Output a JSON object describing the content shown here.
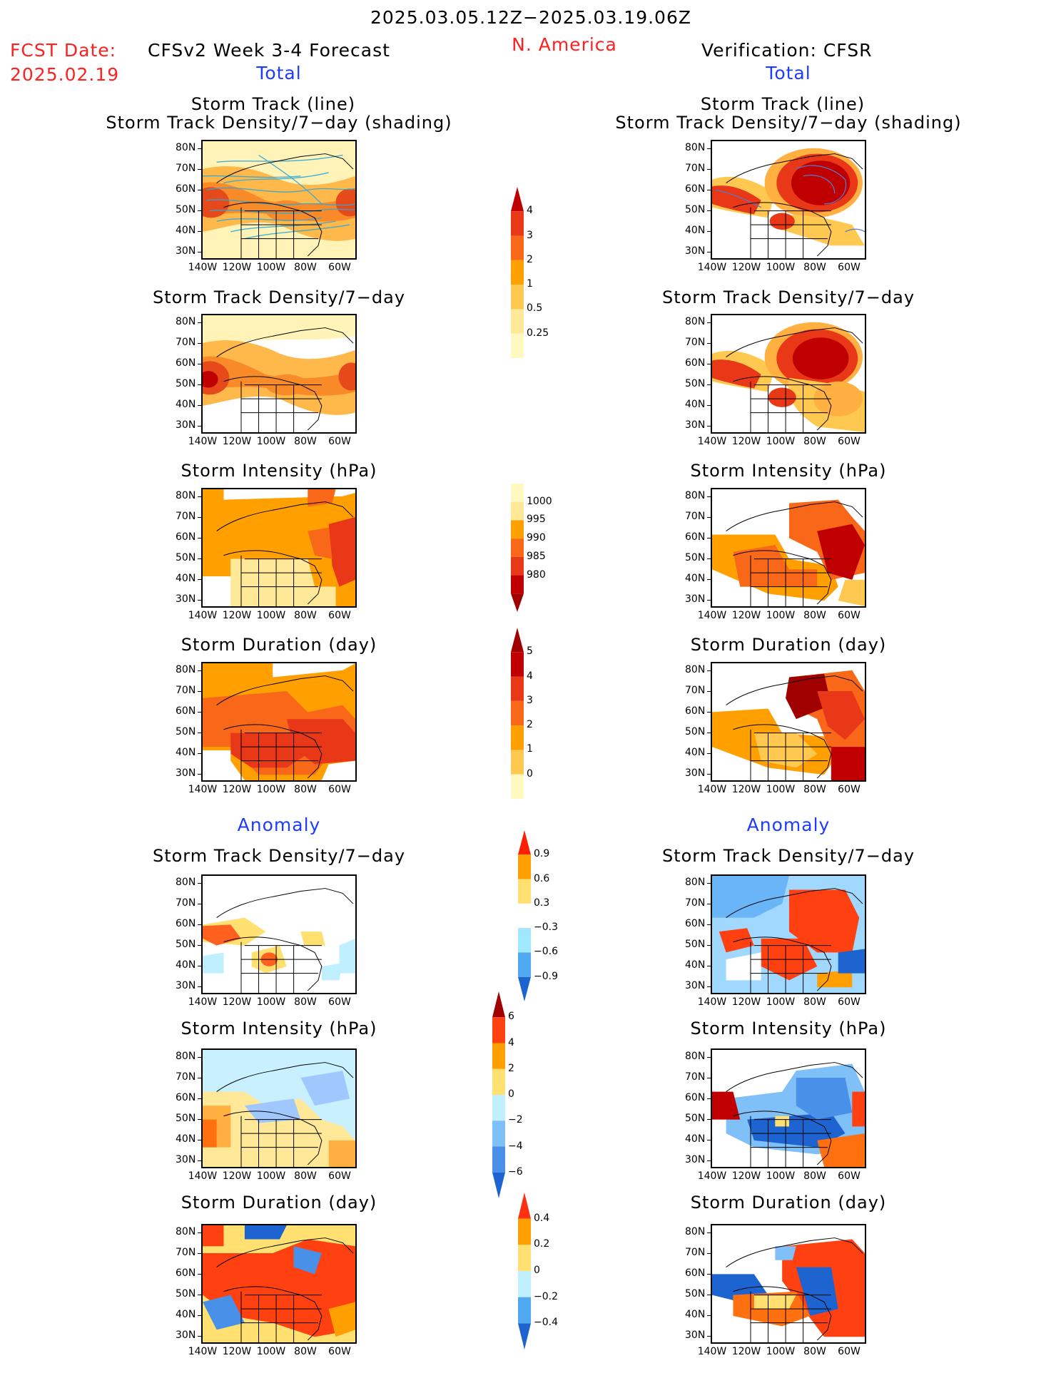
{
  "header": {
    "date_range": "2025.03.05.12Z−2025.03.19.06Z",
    "fcst_label": "FCST Date:",
    "fcst_date": "2025.02.19",
    "left_title": "CFSv2 Week 3-4 Forecast",
    "region": "N. America",
    "right_title": "Verification: CFSR"
  },
  "sections": {
    "total": "Total",
    "anomaly": "Anomaly"
  },
  "panel_titles": {
    "track_line": "Storm Track (line)",
    "track_shading": "Storm Track Density/7−day (shading)",
    "density": "Storm Track Density/7−day",
    "intensity": "Storm Intensity (hPa)",
    "duration": "Storm Duration (day)"
  },
  "axes": {
    "lat_ticks": [
      "80N",
      "70N",
      "60N",
      "50N",
      "40N",
      "30N"
    ],
    "lon_ticks": [
      "140W",
      "120W",
      "100W",
      "80W",
      "60W"
    ]
  },
  "colorbars": {
    "density_total": {
      "labels": [
        "4",
        "3",
        "2",
        "1",
        "0.5",
        "0.25"
      ],
      "colors": [
        "#c00000",
        "#e83818",
        "#f86818",
        "#ffa000",
        "#ffc850",
        "#ffe898",
        "#fff8c0"
      ]
    },
    "intensity_total": {
      "labels": [
        "1000",
        "995",
        "990",
        "985",
        "980"
      ],
      "colors": [
        "#fff8c0",
        "#ffe898",
        "#ffa000",
        "#f86818",
        "#e83818",
        "#c00000",
        "#a00000"
      ]
    },
    "duration_total": {
      "labels": [
        "5",
        "4",
        "3",
        "2",
        "1",
        "0"
      ],
      "colors": [
        "#a00000",
        "#c00000",
        "#e83818",
        "#f86818",
        "#ffa000",
        "#ffc850",
        "#fff8c0"
      ]
    },
    "density_anom": {
      "labels": [
        "0.9",
        "0.6",
        "0.3",
        "−0.3",
        "−0.6",
        "−0.9"
      ],
      "colors": [
        "#ff2000",
        "#ffa000",
        "#ffe070",
        "#ffffff",
        "#a0e8ff",
        "#50a8f0",
        "#1e64d0"
      ]
    },
    "intensity_anom": {
      "labels": [
        "6",
        "4",
        "2",
        "0",
        "−2",
        "−4",
        "−6"
      ],
      "colors": [
        "#a00000",
        "#ff4010",
        "#ffa000",
        "#ffe070",
        "#c0f0ff",
        "#80c0f8",
        "#4890e8",
        "#1e64d0"
      ]
    },
    "duration_anom": {
      "labels": [
        "0.4",
        "0.2",
        "0",
        "−0.2",
        "−0.4"
      ],
      "colors": [
        "#ff3010",
        "#ffa000",
        "#ffe070",
        "#c0f0ff",
        "#50a8f0",
        "#1e64d0"
      ]
    }
  }
}
